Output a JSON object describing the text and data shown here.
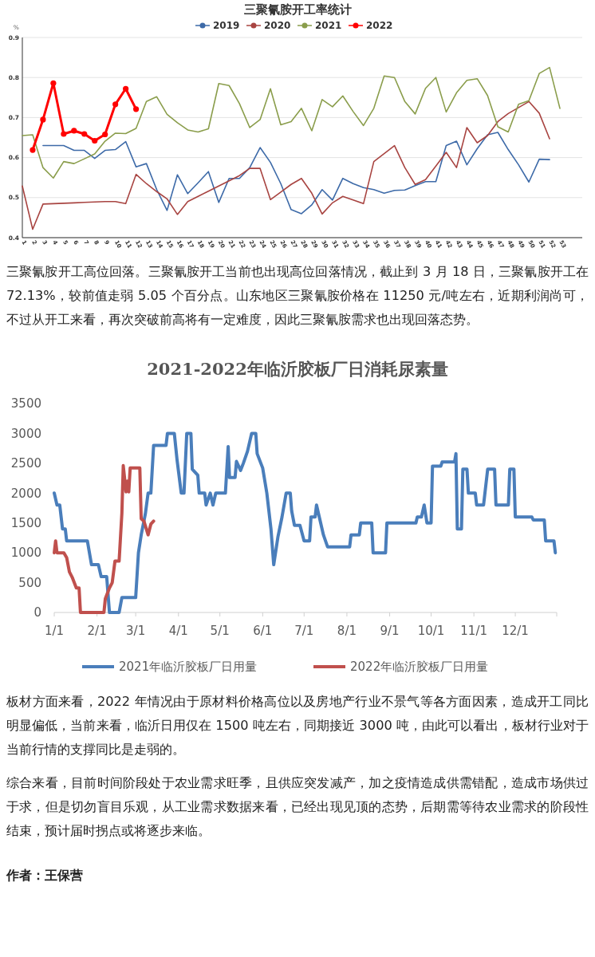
{
  "chart_data": [
    {
      "type": "line",
      "title": "三聚氰胺开工率统计",
      "ylabel": "%",
      "categories": [
        "1",
        "2",
        "3",
        "4",
        "5",
        "6",
        "7",
        "8",
        "9",
        "10",
        "11",
        "12",
        "13",
        "14",
        "15",
        "16",
        "17",
        "18",
        "19",
        "20",
        "21",
        "22",
        "23",
        "24",
        "25",
        "26",
        "27",
        "28",
        "29",
        "30",
        "31",
        "32",
        "33",
        "34",
        "35",
        "36",
        "37",
        "38",
        "39",
        "40",
        "41",
        "42",
        "43",
        "44",
        "45",
        "46",
        "47",
        "48",
        "49",
        "50",
        "51",
        "52",
        "53"
      ],
      "ylim": [
        0.4,
        0.9
      ],
      "yticks": [
        0.4,
        0.5,
        0.6,
        0.7,
        0.8,
        0.9
      ],
      "grid": "y",
      "legend": "top",
      "marker": "none",
      "series": [
        {
          "name": "2019",
          "color": "#3d6aa8",
          "values": [
            null,
            null,
            0.63,
            0.63,
            0.63,
            0.618,
            0.618,
            0.598,
            0.618,
            0.62,
            0.64,
            0.577,
            0.585,
            0.52,
            0.468,
            0.557,
            0.51,
            0.537,
            0.565,
            0.488,
            0.548,
            0.548,
            0.575,
            0.625,
            0.588,
            0.535,
            0.47,
            0.46,
            0.482,
            0.52,
            0.494,
            0.548,
            0.535,
            0.525,
            0.52,
            0.511,
            0.518,
            0.519,
            0.53,
            0.54,
            0.54,
            0.63,
            0.641,
            0.582,
            0.622,
            0.657,
            0.663,
            0.62,
            0.582,
            0.539,
            0.596,
            0.595,
            null
          ]
        },
        {
          "name": "2020",
          "color": "#a84441",
          "values": [
            0.529,
            0.421,
            0.484,
            0.485,
            0.486,
            0.487,
            0.488,
            0.489,
            0.49,
            0.49,
            0.485,
            0.558,
            0.535,
            0.515,
            0.497,
            0.458,
            0.49,
            0.503,
            0.516,
            0.529,
            0.542,
            0.555,
            0.573,
            0.573,
            0.495,
            0.514,
            0.533,
            0.548,
            0.511,
            0.459,
            0.487,
            0.503,
            0.494,
            0.485,
            0.59,
            0.61,
            0.63,
            0.575,
            0.533,
            0.545,
            0.579,
            0.613,
            0.575,
            0.675,
            0.637,
            0.655,
            0.69,
            0.71,
            0.725,
            0.74,
            0.711,
            0.647,
            null
          ]
        },
        {
          "name": "2021",
          "color": "#8a9d4b",
          "values": [
            0.655,
            0.657,
            0.575,
            0.549,
            0.59,
            0.585,
            0.597,
            0.609,
            0.641,
            0.661,
            0.66,
            0.673,
            0.74,
            0.752,
            0.708,
            0.687,
            0.669,
            0.664,
            0.672,
            0.785,
            0.78,
            0.735,
            0.675,
            0.695,
            0.772,
            0.682,
            0.69,
            0.723,
            0.667,
            0.745,
            0.727,
            0.754,
            0.715,
            0.68,
            0.723,
            0.804,
            0.8,
            0.74,
            0.709,
            0.773,
            0.8,
            0.714,
            0.762,
            0.793,
            0.797,
            0.755,
            0.677,
            0.664,
            0.733,
            0.742,
            0.81,
            0.825,
            0.723
          ]
        },
        {
          "name": "2022",
          "color": "#ff0000",
          "marker": "circle",
          "values": [
            null,
            0.619,
            0.695,
            0.786,
            0.659,
            0.667,
            0.659,
            0.642,
            0.658,
            0.733,
            0.772,
            0.721,
            null,
            null,
            null,
            null,
            null,
            null,
            null,
            null,
            null,
            null,
            null,
            null,
            null,
            null,
            null,
            null,
            null,
            null,
            null,
            null,
            null,
            null,
            null,
            null,
            null,
            null,
            null,
            null,
            null,
            null,
            null,
            null,
            null,
            null,
            null,
            null,
            null,
            null,
            null,
            null,
            null
          ]
        }
      ]
    },
    {
      "type": "other",
      "annotations": [
        "三聚氰胺开工高位回落。三聚氰胺开工当前也出现高位回落情况，截止到 3 月 18 日，三聚氰胺开工在 72.13%，较前值走弱 5.05 个百分点。山东地区三聚氰胺价格在 11250 元/吨左右，近期利润尚可，不过从开工来看，再次突破前高将有一定难度，因此三聚氰胺需求也出现回落态势。"
      ]
    },
    {
      "type": "line",
      "title": "2021-2022年临沂胶板厂日消耗尿素量",
      "xlim": [
        "--01-01",
        "--12-31"
      ],
      "xticks": [
        {
          "value": "--01-01",
          "label": "1/1"
        },
        {
          "value": "--02-01",
          "label": "2/1"
        },
        {
          "value": "--03-01",
          "label": "3/1"
        },
        {
          "value": "--04-01",
          "label": "4/1"
        },
        {
          "value": "--05-01",
          "label": "5/1"
        },
        {
          "value": "--06-01",
          "label": "6/1"
        },
        {
          "value": "--07-01",
          "label": "7/1"
        },
        {
          "value": "--08-01",
          "label": "8/1"
        },
        {
          "value": "--09-01",
          "label": "9/1"
        },
        {
          "value": "--10-01",
          "label": "10/1"
        },
        {
          "value": "--11-01",
          "label": "11/1"
        },
        {
          "value": "--12-01",
          "label": "12/1"
        },
        {
          "value": "--12-31",
          "label": null
        }
      ],
      "ylim": [
        0,
        3500
      ],
      "yticks": [
        0,
        500,
        1000,
        1500,
        2000,
        2500,
        3000,
        3500
      ],
      "legend": "bottom",
      "grid": false,
      "series": [
        {
          "name": "2021年临沂胶板厂日用量",
          "color": "#4a7ebb",
          "x": [
            "--01-01",
            "--01-03",
            "--01-05",
            "--01-07",
            "--01-09",
            "--01-10",
            "--01-25",
            "--01-28",
            "--02-02",
            "--02-04",
            "--02-08",
            "--02-10",
            "--02-17",
            "--02-19",
            "--03-01",
            "--03-03",
            "--03-05",
            "--03-08",
            "--03-10",
            "--03-12",
            "--03-14",
            "--03-23",
            "--03-24",
            "--03-29",
            "--03-31",
            "--04-03",
            "--04-05",
            "--04-07",
            "--04-10",
            "--04-11",
            "--04-15",
            "--04-16",
            "--04-20",
            "--04-21",
            "--04-24",
            "--04-26",
            "--04-28",
            "--05-05",
            "--05-07",
            "--05-08",
            "--05-12",
            "--05-13",
            "--05-16",
            "--05-18",
            "--05-21",
            "--05-24",
            "--05-27",
            "--05-28",
            "--06-01",
            "--06-04",
            "--06-07",
            "--06-09",
            "--06-12",
            "--06-15",
            "--06-18",
            "--06-21",
            "--06-22",
            "--06-24",
            "--06-28",
            "--07-01",
            "--07-05",
            "--07-06",
            "--07-09",
            "--07-10",
            "--07-12",
            "--07-15",
            "--07-18",
            "--08-03",
            "--08-04",
            "--08-10",
            "--08-11",
            "--08-19",
            "--08-20",
            "--08-29",
            "--08-30",
            "--09-20",
            "--09-21",
            "--09-24",
            "--09-26",
            "--09-28",
            "--10-01",
            "--10-02",
            "--10-08",
            "--10-09",
            "--10-18",
            "--10-19",
            "--10-20",
            "--10-23",
            "--10-24",
            "--10-27",
            "--10-28",
            "--11-02",
            "--11-03",
            "--11-08",
            "--11-09",
            "--11-11",
            "--11-16",
            "--11-17",
            "--11-26",
            "--11-27",
            "--11-30",
            "--12-01",
            "--12-13",
            "--12-14",
            "--12-22",
            "--12-23",
            "--12-29",
            "--12-30"
          ],
          "values": [
            2000,
            1800,
            1800,
            1400,
            1400,
            1200,
            1200,
            800,
            800,
            600,
            600,
            0,
            0,
            250,
            250,
            1000,
            1300,
            1650,
            2000,
            2000,
            2800,
            2800,
            3000,
            3000,
            2550,
            2000,
            2000,
            3000,
            3000,
            2400,
            2300,
            2000,
            2000,
            1800,
            2000,
            1800,
            2000,
            2000,
            2780,
            2260,
            2260,
            2530,
            2380,
            2500,
            2700,
            3000,
            3000,
            2660,
            2420,
            2000,
            1400,
            800,
            1260,
            1600,
            2000,
            2000,
            1700,
            1460,
            1460,
            1200,
            1200,
            1600,
            1600,
            1800,
            1600,
            1300,
            1100,
            1100,
            1300,
            1300,
            1500,
            1500,
            1000,
            1000,
            1500,
            1500,
            1600,
            1600,
            1800,
            1500,
            1500,
            2450,
            2450,
            2520,
            2520,
            2660,
            1400,
            1400,
            2400,
            2400,
            2000,
            2000,
            1800,
            1800,
            2000,
            2400,
            2400,
            1800,
            1800,
            2400,
            2400,
            1600,
            1600,
            1550,
            1550,
            1200,
            1200,
            1000
          ]
        },
        {
          "name": "2022年临沂胶板厂日用量",
          "color": "#c0504d",
          "x": [
            "--01-01",
            "--01-02",
            "--01-03",
            "--01-08",
            "--01-10",
            "--01-12",
            "--01-14",
            "--01-17",
            "--01-19",
            "--01-20",
            "--02-06",
            "--02-07",
            "--02-10",
            "--02-12",
            "--02-14",
            "--02-17",
            "--02-19",
            "--02-20",
            "--02-22",
            "--02-23",
            "--02-24",
            "--02-25",
            "--03-04",
            "--03-05",
            "--03-07",
            "--03-10",
            "--03-12",
            "--03-14"
          ],
          "values": [
            1000,
            1200,
            1000,
            1000,
            920,
            680,
            590,
            410,
            410,
            0,
            0,
            230,
            410,
            500,
            860,
            860,
            1660,
            2460,
            2020,
            2200,
            2020,
            2420,
            2420,
            1570,
            1530,
            1300,
            1480,
            1530
          ]
        }
      ]
    },
    {
      "type": "other",
      "annotations": [
        "板材方面来看，2022 年情况由于原材料价格高位以及房地产行业不景气等各方面因素，造成开工同比明显偏低，当前来看，临沂日用仅在 1500 吨左右，同期接近 3000 吨，由此可以看出，板材行业对于当前行情的支撑同比是走弱的。",
        "综合来看，目前时间阶段处于农业需求旺季，且供应突发减产，加之疫情造成供需错配，造成市场供过于求，但是切勿盲目乐观，从工业需求数据来看，已经出现见顶的态势，后期需等待农业需求的阶段性结束，预计届时拐点或将逐步来临。",
        "作者：王保营"
      ]
    }
  ]
}
